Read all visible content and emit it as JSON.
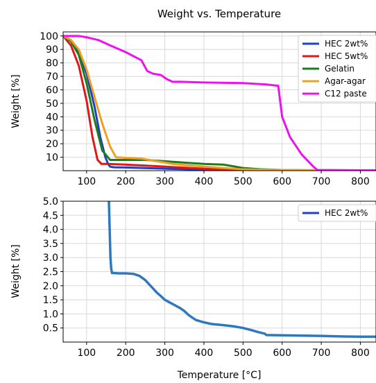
{
  "figure_title": "Weight vs. Temperature",
  "chart_data": [
    {
      "type": "line",
      "title": "",
      "xlabel": "",
      "ylabel": "Weight [%]",
      "xlim": [
        40,
        840
      ],
      "ylim": [
        0,
        103
      ],
      "grid": true,
      "legend_position": "top-right",
      "x_ticks": [
        100,
        200,
        300,
        400,
        500,
        600,
        700,
        800
      ],
      "x_tick_labels": [
        "100",
        "200",
        "300",
        "400",
        "500",
        "600",
        "700",
        "800"
      ],
      "y_ticks": [
        10,
        20,
        30,
        40,
        50,
        60,
        70,
        80,
        90,
        100
      ],
      "y_tick_labels": [
        "10",
        "20",
        "30",
        "40",
        "50",
        "60",
        "70",
        "80",
        "90",
        "100"
      ],
      "series": [
        {
          "name": "HEC 2wt%",
          "color": "#1f3fc7",
          "x": [
            40,
            60,
            80,
            100,
            120,
            135,
            148,
            155,
            160,
            170,
            200,
            300,
            400,
            500,
            600,
            700,
            840
          ],
          "y": [
            100,
            97,
            88,
            72,
            48,
            25,
            10,
            5,
            3,
            2.5,
            2.4,
            1.5,
            0.7,
            0.4,
            0.2,
            0.2,
            0.2
          ]
        },
        {
          "name": "HEC 5wt%",
          "color": "#e01717",
          "x": [
            40,
            60,
            80,
            100,
            115,
            128,
            138,
            150,
            200,
            300,
            400,
            500,
            600,
            840
          ],
          "y": [
            100,
            93,
            78,
            52,
            25,
            8,
            5,
            5,
            4.5,
            3,
            1.5,
            0.7,
            0.3,
            0.2
          ]
        },
        {
          "name": "Gelatin",
          "color": "#1a7d1a",
          "x": [
            40,
            60,
            80,
            100,
            120,
            140,
            160,
            200,
            250,
            300,
            350,
            400,
            450,
            500,
            550,
            600,
            650,
            840
          ],
          "y": [
            100,
            96,
            86,
            65,
            38,
            15,
            8,
            8,
            8,
            7,
            6,
            5,
            4.5,
            2,
            1,
            0.5,
            0.3,
            0.2
          ]
        },
        {
          "name": "Agar-agar",
          "color": "#f0a020",
          "x": [
            40,
            60,
            80,
            100,
            120,
            140,
            160,
            175,
            200,
            240,
            280,
            320,
            400,
            500,
            600,
            840
          ],
          "y": [
            100,
            97,
            90,
            75,
            55,
            35,
            18,
            10,
            9.5,
            9,
            7,
            5,
            3,
            1,
            0.5,
            0.2
          ]
        },
        {
          "name": "C12 paste",
          "color": "#ee10ee",
          "x": [
            40,
            80,
            100,
            130,
            160,
            200,
            240,
            255,
            270,
            290,
            305,
            320,
            340,
            400,
            500,
            560,
            590,
            600,
            620,
            650,
            680,
            690,
            840
          ],
          "y": [
            100,
            100,
            99,
            97,
            93,
            88,
            82,
            74,
            72,
            71,
            68,
            66,
            66,
            65.5,
            65,
            64,
            63,
            40,
            25,
            12,
            3,
            0.5,
            0.2
          ]
        }
      ]
    },
    {
      "type": "line",
      "title": "",
      "xlabel": "Temperature [°C]",
      "ylabel": "Weight [%]",
      "xlim": [
        40,
        840
      ],
      "ylim": [
        0,
        5
      ],
      "grid": true,
      "legend_position": "top-right",
      "x_ticks": [
        100,
        200,
        300,
        400,
        500,
        600,
        700,
        800
      ],
      "x_tick_labels": [
        "100",
        "200",
        "300",
        "400",
        "500",
        "600",
        "700",
        "800"
      ],
      "y_ticks": [
        0.5,
        1.0,
        1.5,
        2.0,
        2.5,
        3.0,
        3.5,
        4.0,
        4.5,
        5.0
      ],
      "y_tick_labels": [
        "0.5",
        "1.0",
        "1.5",
        "2.0",
        "2.5",
        "3.0",
        "3.5",
        "4.0",
        "4.5",
        "5.0"
      ],
      "series": [
        {
          "name": "HEC 2wt%",
          "color": "#2f78c0",
          "legend_color": "#1f3fc7",
          "x": [
            157,
            159,
            161,
            163,
            165,
            170,
            180,
            200,
            220,
            235,
            250,
            260,
            270,
            280,
            290,
            300,
            320,
            340,
            350,
            360,
            370,
            380,
            400,
            420,
            450,
            480,
            500,
            520,
            540,
            555,
            560,
            600,
            700,
            750,
            800,
            840
          ],
          "y": [
            5.0,
            4.0,
            3.0,
            2.6,
            2.45,
            2.45,
            2.44,
            2.44,
            2.42,
            2.35,
            2.2,
            2.05,
            1.9,
            1.75,
            1.63,
            1.5,
            1.35,
            1.2,
            1.1,
            0.97,
            0.87,
            0.78,
            0.7,
            0.64,
            0.6,
            0.55,
            0.5,
            0.43,
            0.35,
            0.3,
            0.25,
            0.24,
            0.22,
            0.2,
            0.19,
            0.19
          ]
        }
      ]
    }
  ]
}
